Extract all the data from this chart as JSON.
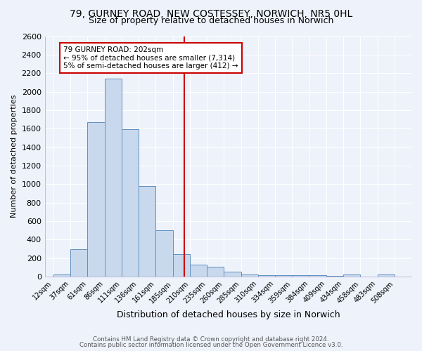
{
  "title": "79, GURNEY ROAD, NEW COSTESSEY, NORWICH, NR5 0HL",
  "subtitle": "Size of property relative to detached houses in Norwich",
  "xlabel": "Distribution of detached houses by size in Norwich",
  "ylabel": "Number of detached properties",
  "footer1": "Contains HM Land Registry data © Crown copyright and database right 2024.",
  "footer2": "Contains public sector information licensed under the Open Government Licence v3.0.",
  "bin_labels": [
    "12sqm",
    "37sqm",
    "61sqm",
    "86sqm",
    "111sqm",
    "136sqm",
    "161sqm",
    "185sqm",
    "210sqm",
    "235sqm",
    "260sqm",
    "285sqm",
    "310sqm",
    "334sqm",
    "359sqm",
    "384sqm",
    "409sqm",
    "434sqm",
    "458sqm",
    "483sqm",
    "508sqm"
  ],
  "bar_heights": [
    20,
    295,
    1670,
    2140,
    1595,
    975,
    500,
    245,
    130,
    105,
    50,
    25,
    15,
    15,
    15,
    15,
    10,
    20,
    0,
    20,
    0
  ],
  "bar_color": "#c9d9ed",
  "bar_edge_color": "#6090c0",
  "vline_color": "#cc0000",
  "annotation_text": "79 GURNEY ROAD: 202sqm\n← 95% of detached houses are smaller (7,314)\n5% of semi-detached houses are larger (412) →",
  "annotation_box_color": "#ffffff",
  "annotation_box_edge": "#cc0000",
  "ylim": [
    0,
    2600
  ],
  "yticks": [
    0,
    200,
    400,
    600,
    800,
    1000,
    1200,
    1400,
    1600,
    1800,
    2000,
    2200,
    2400,
    2600
  ],
  "background_color": "#eef2fb",
  "plot_background": "#eef2fb",
  "grid_color": "#ffffff",
  "title_fontsize": 10,
  "subtitle_fontsize": 9
}
